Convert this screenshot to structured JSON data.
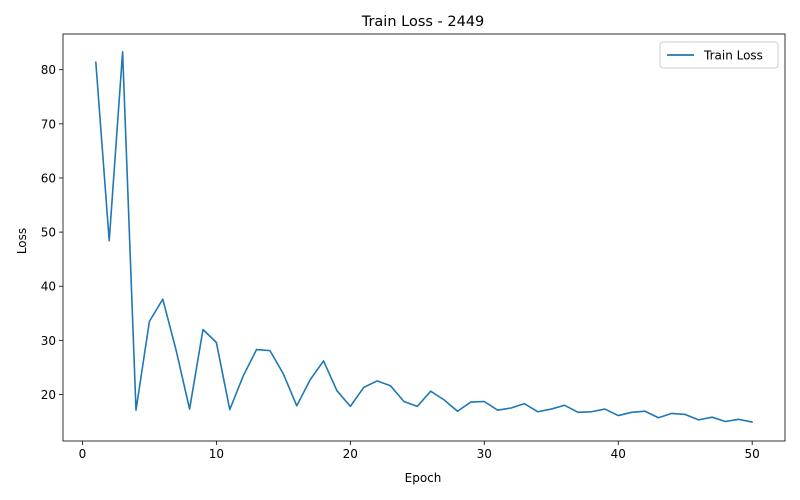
{
  "chart_data": {
    "type": "line",
    "title": "Train Loss - 2449",
    "xlabel": "Epoch",
    "ylabel": "Loss",
    "xlim": [
      -1.45,
      52.45
    ],
    "ylim": [
      11.4,
      86.6
    ],
    "x_ticks": [
      0,
      10,
      20,
      30,
      40,
      50
    ],
    "y_ticks": [
      20,
      30,
      40,
      50,
      60,
      70,
      80
    ],
    "grid": false,
    "legend_position": "top-right",
    "series": [
      {
        "name": "Train Loss",
        "color": "#1f77b4",
        "x": [
          1,
          2,
          3,
          4,
          5,
          6,
          7,
          8,
          9,
          10,
          11,
          12,
          13,
          14,
          15,
          16,
          17,
          18,
          19,
          20,
          21,
          22,
          23,
          24,
          25,
          26,
          27,
          28,
          29,
          30,
          31,
          32,
          33,
          34,
          35,
          36,
          37,
          38,
          39,
          40,
          41,
          42,
          43,
          44,
          45,
          46,
          47,
          48,
          49,
          50
        ],
        "y": [
          81.4,
          48.4,
          83.3,
          17.1,
          33.5,
          37.6,
          28.1,
          17.3,
          32.0,
          29.6,
          17.2,
          23.4,
          28.3,
          28.1,
          23.8,
          17.9,
          22.7,
          26.2,
          20.7,
          17.8,
          21.3,
          22.5,
          21.6,
          18.7,
          17.8,
          20.6,
          19.0,
          16.9,
          18.6,
          18.7,
          17.1,
          17.5,
          18.3,
          16.8,
          17.3,
          18.0,
          16.7,
          16.8,
          17.3,
          16.1,
          16.7,
          16.9,
          15.7,
          16.5,
          16.3,
          15.3,
          15.8,
          15.0,
          15.4,
          14.9
        ]
      }
    ]
  }
}
